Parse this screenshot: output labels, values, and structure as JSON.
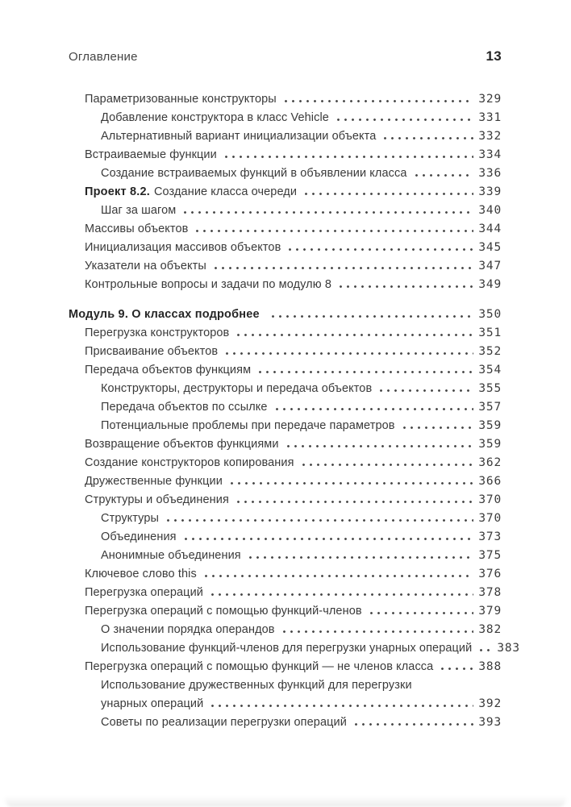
{
  "header": {
    "running_title": "Оглавление",
    "page_number": "13"
  },
  "colors": {
    "ink": "#3a3a3a",
    "ink_bold": "#262626",
    "dot_leader": "#4a4a4a",
    "background": "#ffffff"
  },
  "toc": {
    "entries": [
      {
        "level": 1,
        "label": "Параметризованные конструкторы",
        "page": "329"
      },
      {
        "level": 2,
        "label": "Добавление конструктора в класс Vehicle",
        "page": "331"
      },
      {
        "level": 2,
        "label": "Альтернативный вариант инициализации объекта",
        "page": "332"
      },
      {
        "level": 1,
        "label": "Встраиваемые функции",
        "page": "334"
      },
      {
        "level": 2,
        "label": "Создание встраиваемых функций в объявлении класса",
        "page": "336"
      },
      {
        "level": 1,
        "bold": "Проект 8.2.",
        "label": "Создание класса очереди",
        "page": "339"
      },
      {
        "level": 2,
        "label": "Шаг за шагом",
        "page": "340"
      },
      {
        "level": 1,
        "label": "Массивы объектов",
        "page": "344"
      },
      {
        "level": 1,
        "label": "Инициализация массивов объектов",
        "page": "345"
      },
      {
        "level": 1,
        "label": "Указатели на объекты",
        "page": "347"
      },
      {
        "level": 1,
        "label": "Контрольные вопросы и задачи по модулю 8",
        "page": "349"
      },
      {
        "level": 0,
        "bold": "Модуль 9. О классах подробнее",
        "label": "",
        "page": "350",
        "section_start": true
      },
      {
        "level": 1,
        "label": "Перегрузка конструкторов",
        "page": "351"
      },
      {
        "level": 1,
        "label": "Присваивание объектов",
        "page": "352"
      },
      {
        "level": 1,
        "label": "Передача объектов функциям",
        "page": "354"
      },
      {
        "level": 2,
        "label": "Конструкторы, деструкторы и передача объектов",
        "page": "355"
      },
      {
        "level": 2,
        "label": "Передача объектов по ссылке",
        "page": "357"
      },
      {
        "level": 2,
        "label": "Потенциальные проблемы при передаче параметров",
        "page": "359"
      },
      {
        "level": 1,
        "label": "Возвращение объектов функциями",
        "page": "359"
      },
      {
        "level": 1,
        "label": "Создание конструкторов копирования",
        "page": "362"
      },
      {
        "level": 1,
        "label": "Дружественные функции",
        "page": "366"
      },
      {
        "level": 1,
        "label": "Структуры и объединения",
        "page": "370"
      },
      {
        "level": 2,
        "label": "Структуры",
        "page": "370"
      },
      {
        "level": 2,
        "label": "Объединения",
        "page": "373"
      },
      {
        "level": 2,
        "label": "Анонимные объединения",
        "page": "375"
      },
      {
        "level": 1,
        "label": "Ключевое слово this",
        "page": "376"
      },
      {
        "level": 1,
        "label": "Перегрузка операций",
        "page": "378"
      },
      {
        "level": 1,
        "label": "Перегрузка операций с помощью функций-членов",
        "page": "379"
      },
      {
        "level": 2,
        "label": "О значении порядка операндов",
        "page": "382"
      },
      {
        "level": 2,
        "label": "Использование функций-членов для перегрузки унарных операций",
        "page": "383"
      },
      {
        "level": 1,
        "label": "Перегрузка операций с помощью функций — не членов класса",
        "page": "388"
      },
      {
        "level": 2,
        "label": "Использование дружественных функций для перегрузки",
        "page": ""
      },
      {
        "level": 2,
        "label": "унарных операций",
        "page": "392"
      },
      {
        "level": 2,
        "label": "Советы по реализации перегрузки операций",
        "page": "393"
      }
    ]
  }
}
